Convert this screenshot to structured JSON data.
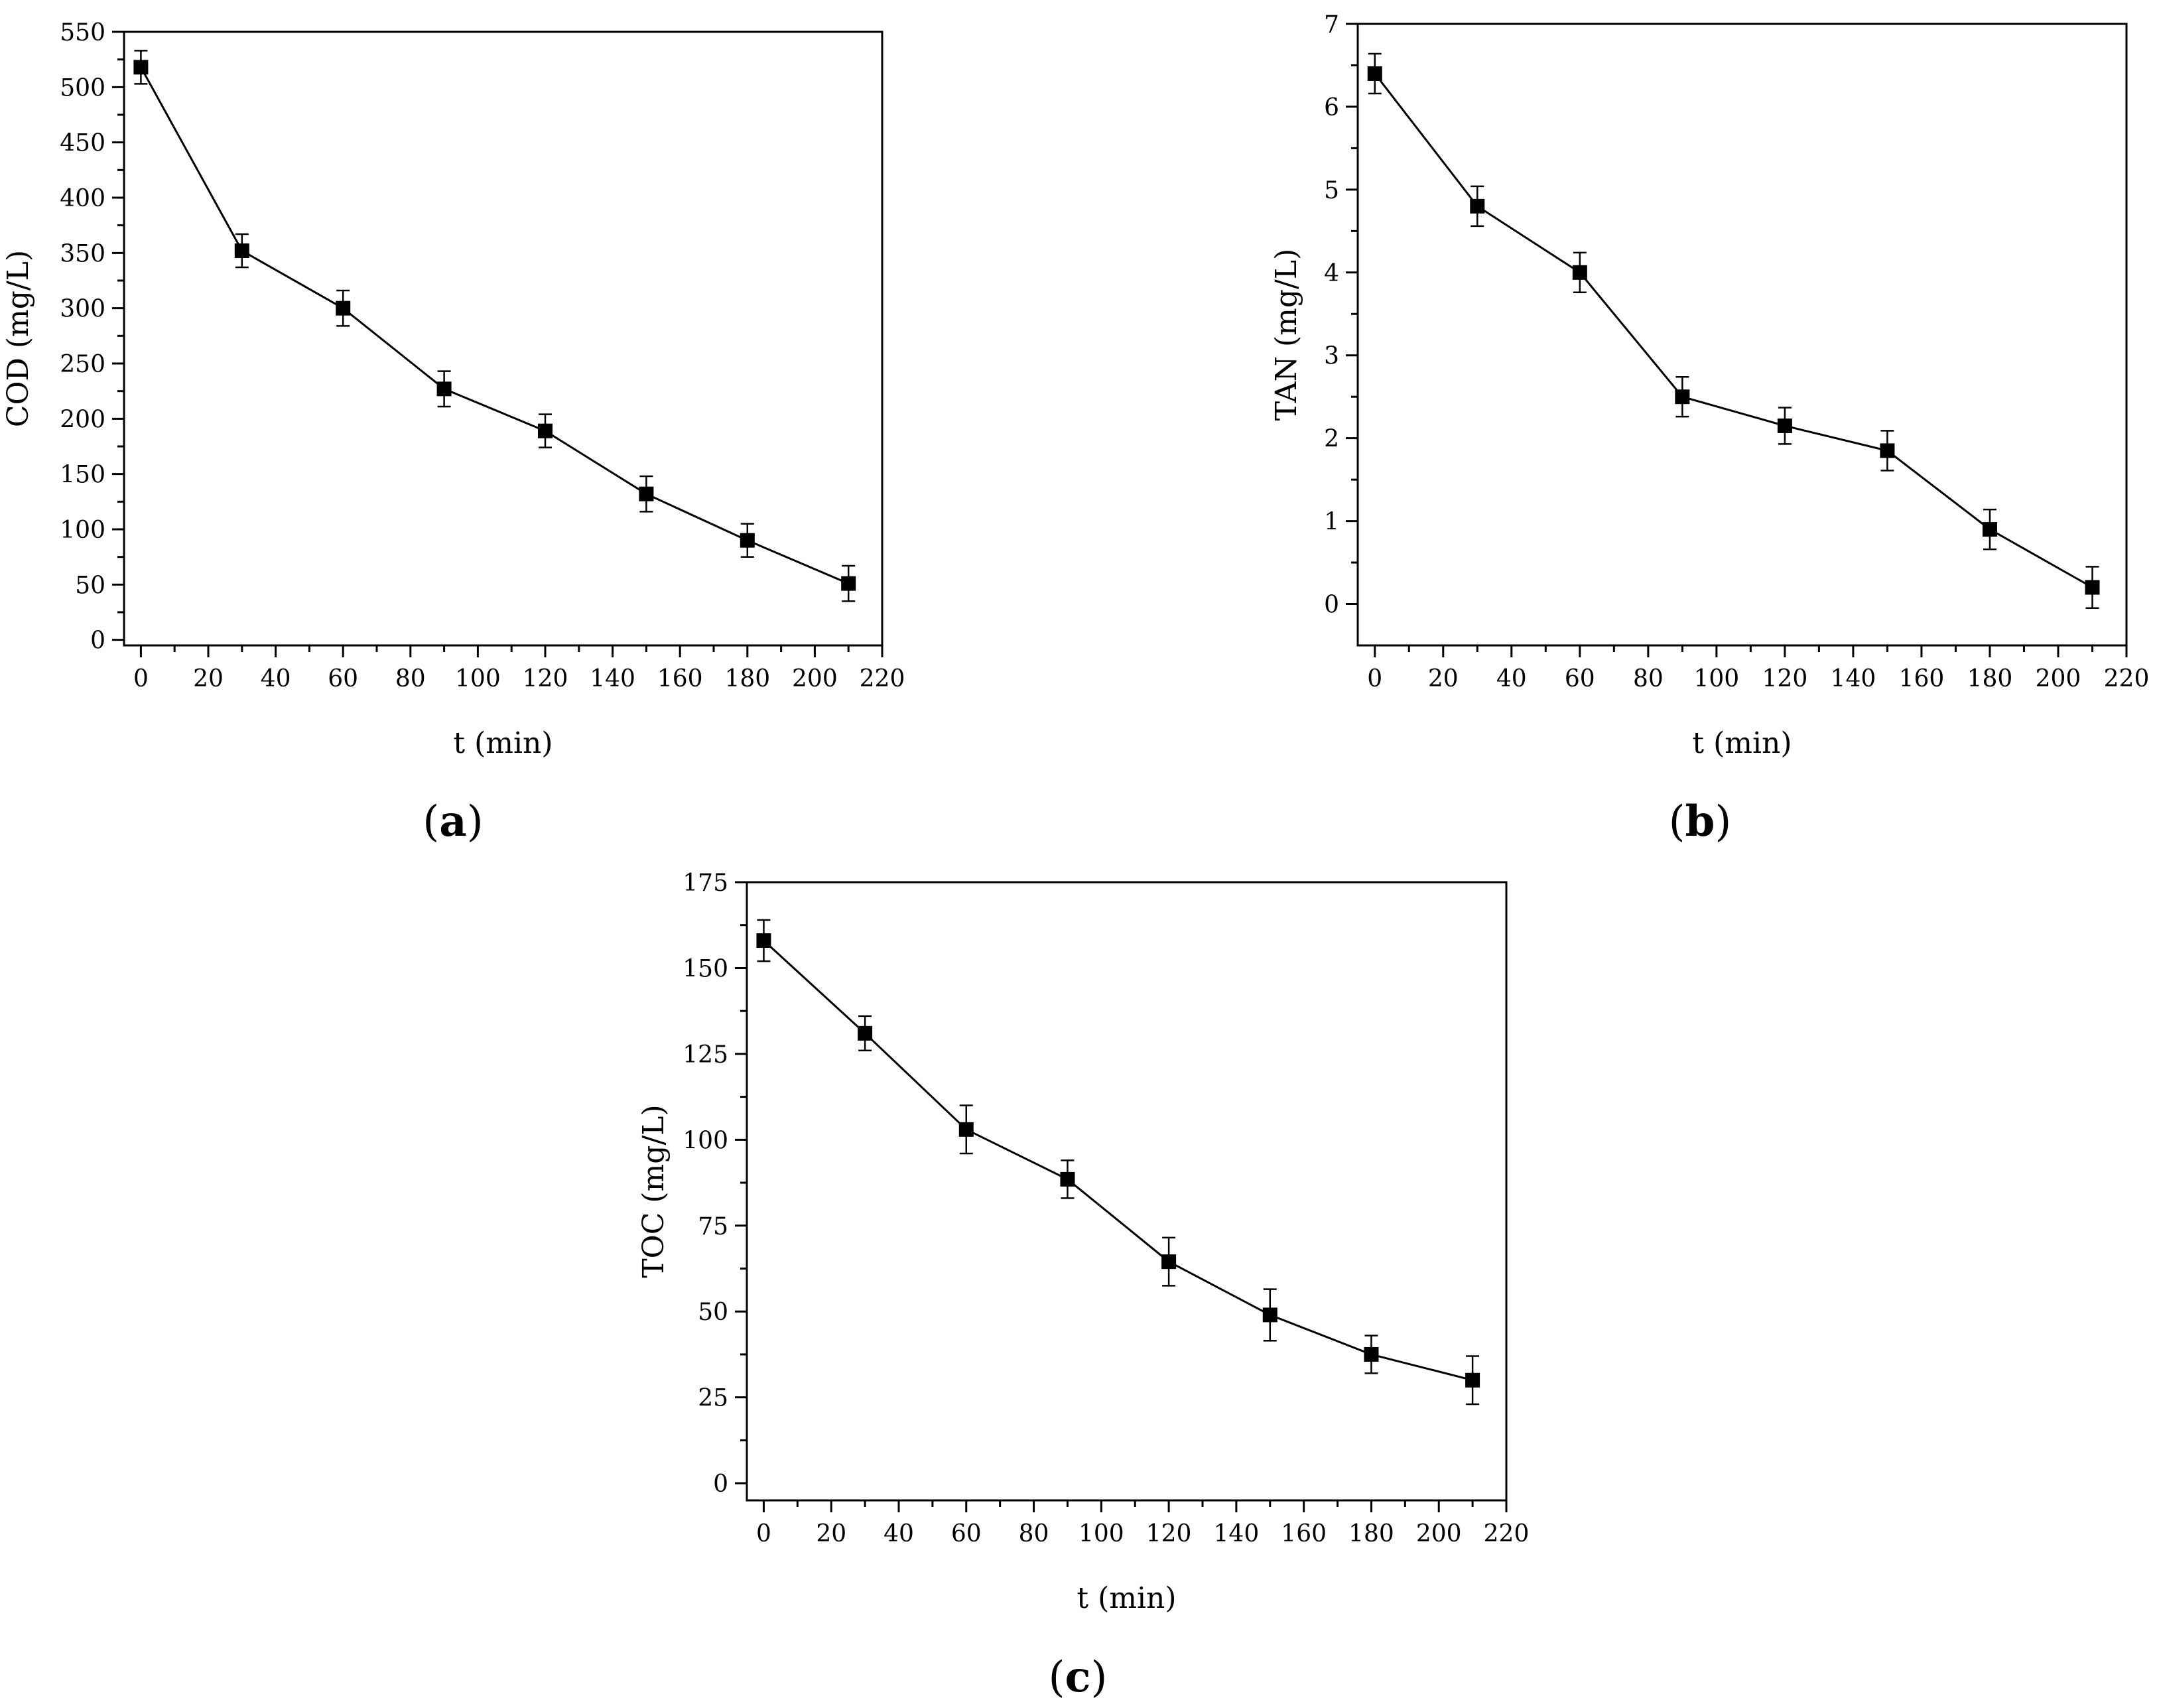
{
  "colors": {
    "background": "#ffffff",
    "ink": "#000000"
  },
  "chart_data": [
    {
      "type": "line",
      "panel_label": "(a)",
      "panel_letter": "a",
      "xlabel": "t (min)",
      "ylabel": "COD (mg/L)",
      "xlim": [
        -5,
        220
      ],
      "ylim": [
        -5,
        550
      ],
      "xticks": [
        0,
        20,
        40,
        60,
        80,
        100,
        120,
        140,
        160,
        180,
        200,
        220
      ],
      "yticks": [
        0,
        50,
        100,
        150,
        200,
        250,
        300,
        350,
        400,
        450,
        500,
        550
      ],
      "marker": "square",
      "series": [
        {
          "x": [
            0,
            30,
            60,
            90,
            120,
            150,
            180,
            210
          ],
          "y": [
            518,
            352,
            300,
            227,
            189,
            132,
            90,
            51
          ],
          "error": [
            15,
            15,
            16,
            16,
            15,
            16,
            15,
            16
          ]
        }
      ]
    },
    {
      "type": "line",
      "panel_label": "(b)",
      "panel_letter": "b",
      "xlabel": "t (min)",
      "ylabel": "TAN (mg/L)",
      "xlim": [
        -5,
        220
      ],
      "ylim": [
        -0.5,
        7
      ],
      "xticks": [
        0,
        20,
        40,
        60,
        80,
        100,
        120,
        140,
        160,
        180,
        200,
        220
      ],
      "yticks": [
        0,
        1,
        2,
        3,
        4,
        5,
        6,
        7
      ],
      "marker": "square",
      "series": [
        {
          "x": [
            0,
            30,
            60,
            90,
            120,
            150,
            180,
            210
          ],
          "y": [
            6.4,
            4.8,
            4.0,
            2.5,
            2.15,
            1.85,
            0.9,
            0.2
          ],
          "error": [
            0.24,
            0.24,
            0.24,
            0.24,
            0.22,
            0.24,
            0.24,
            0.25
          ]
        }
      ]
    },
    {
      "type": "line",
      "panel_label": "(c)",
      "panel_letter": "c",
      "xlabel": "t (min)",
      "ylabel": "TOC (mg/L)",
      "xlim": [
        -5,
        220
      ],
      "ylim": [
        -5,
        175
      ],
      "xticks": [
        0,
        20,
        40,
        60,
        80,
        100,
        120,
        140,
        160,
        180,
        200,
        220
      ],
      "yticks": [
        0,
        25,
        50,
        75,
        100,
        125,
        150,
        175
      ],
      "marker": "square",
      "series": [
        {
          "x": [
            0,
            30,
            60,
            90,
            120,
            150,
            180,
            210
          ],
          "y": [
            158,
            131,
            103,
            88.5,
            64.5,
            49,
            37.5,
            30
          ],
          "error": [
            6,
            5,
            7,
            5.5,
            7,
            7.5,
            5.5,
            7
          ]
        }
      ]
    }
  ]
}
